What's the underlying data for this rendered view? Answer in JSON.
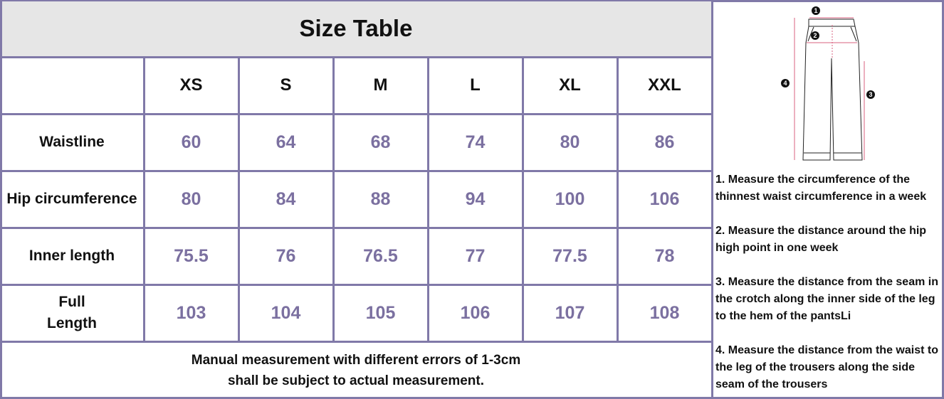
{
  "title": "Size Table",
  "sizes": [
    "XS",
    "S",
    "M",
    "L",
    "XL",
    "XXL"
  ],
  "rows": [
    {
      "label": "Waistline",
      "values": [
        "60",
        "64",
        "68",
        "74",
        "80",
        "86"
      ]
    },
    {
      "label": "Hip circumference",
      "values": [
        "80",
        "84",
        "88",
        "94",
        "100",
        "106"
      ]
    },
    {
      "label": "Inner length",
      "values": [
        "75.5",
        "76",
        "76.5",
        "77",
        "77.5",
        "78"
      ]
    },
    {
      "label": "Full Length",
      "values": [
        "103",
        "104",
        "105",
        "106",
        "107",
        "108"
      ]
    }
  ],
  "note_line1": "Manual measurement with different errors of 1-3cm",
  "note_line2": "shall be subject to actual measurement.",
  "diagram": {
    "markers": [
      "1",
      "2",
      "3",
      "4"
    ],
    "accent": "#d9607f"
  },
  "instructions": [
    "1. Measure the circumference of the thinnest waist circumference in a week",
    "2. Measure the distance around the hip high point in one week",
    "3. Measure the distance from the seam in the crotch along the inner side of the leg to the hem of the pantsLi",
    "4. Measure the distance from the waist to the leg of the trousers along the side seam of the trousers"
  ],
  "colors": {
    "border": "#8079a8",
    "value": "#7b70a0",
    "title_bg": "#e6e6e6"
  }
}
